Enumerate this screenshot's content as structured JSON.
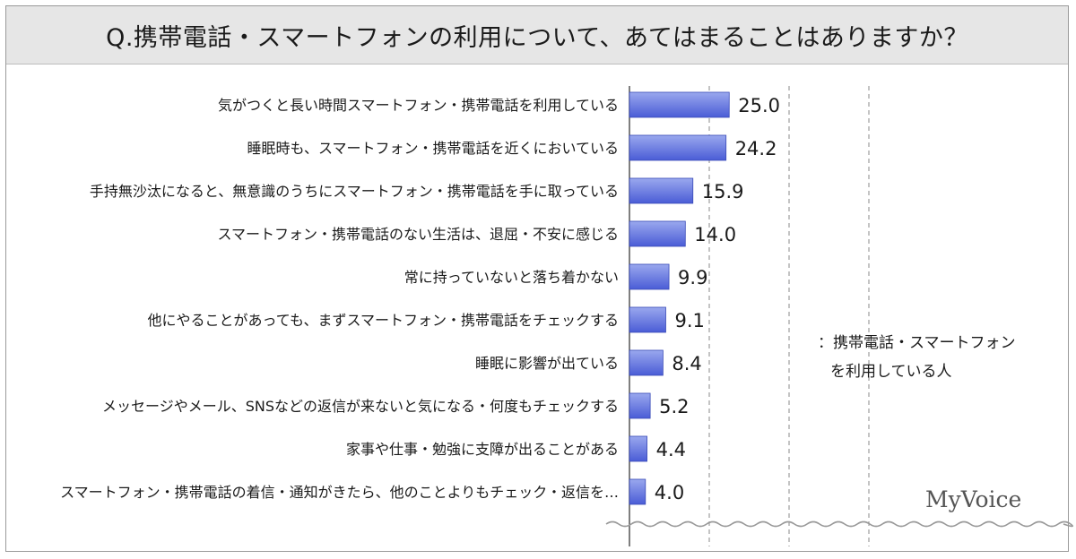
{
  "title": "Q.携帯電話・スマートフォンの利用について、あてはまることはありますか？",
  "legend": {
    "line1": "：携帯電話・スマートフォン",
    "line2": "を利用している人"
  },
  "logo": "MyVoice",
  "colors": {
    "bar_top": "#9aa8ee",
    "bar_bottom": "#4a5cd6",
    "bar_edge": "#3a4bb8"
  },
  "chart_data": {
    "type": "bar",
    "orientation": "horizontal",
    "title": "Q.携帯電話・スマートフォンの利用について、あてはまることはありますか？",
    "xlabel": "",
    "ylabel": "",
    "xlim": [
      0,
      80
    ],
    "grid": "vertical dashed at 20, 40, 60",
    "categories": [
      "気がつくと長い時間スマートフォン・携帯電話を利用している",
      "睡眠時も、スマートフォン・携帯電話を近くにおいている",
      "手持無沙汰になると、無意識のうちにスマートフォン・携帯電話を手に取っている",
      "スマートフォン・携帯電話のない生活は、退屈・不安に感じる",
      "常に持っていないと落ち着かない",
      "他にやることがあっても、まずスマートフォン・携帯電話をチェックする",
      "睡眠に影響が出ている",
      "メッセージやメール、SNSなどの返信が来ないと気になる・何度もチェックする",
      "家事や仕事・勉強に支障が出ることがある",
      "スマートフォン・携帯電話の着信・通知がきたら、他のことよりもチェック・返信を…"
    ],
    "values": [
      25.0,
      24.2,
      15.9,
      14.0,
      9.9,
      9.1,
      8.4,
      5.2,
      4.4,
      4.0
    ],
    "value_labels": [
      "25.0",
      "24.2",
      "15.9",
      "14.0",
      "9.9",
      "9.1",
      "8.4",
      "5.2",
      "4.4",
      "4.0"
    ],
    "series": [
      {
        "name": "携帯電話・スマートフォンを利用している人"
      }
    ]
  }
}
